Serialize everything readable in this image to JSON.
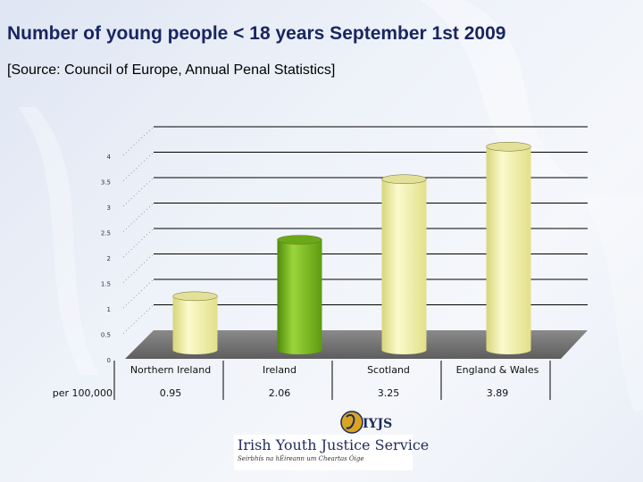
{
  "slide": {
    "title": "Number of young people < 18 years September 1st 2009",
    "subtitle": "[Source: Council of Europe, Annual Penal Statistics]"
  },
  "chart_data": {
    "type": "bar",
    "categories": [
      "Northern Ireland",
      "Ireland",
      "Scotland",
      "England & Wales"
    ],
    "values": [
      0.95,
      2.06,
      3.25,
      3.89
    ],
    "value_labels": [
      "0.95",
      "2.06",
      "3.25",
      "3.89"
    ],
    "table_row_label": "per 100,000",
    "ylim": [
      0,
      4
    ],
    "yticks": [
      "0",
      "0.5",
      "1",
      "1.5",
      "2",
      "2.5",
      "3",
      "3.5",
      "4"
    ],
    "grid": true,
    "bar_colors": [
      "#f4f2a0",
      "#7dbb1c",
      "#f4f2a0",
      "#f4f2a0"
    ]
  },
  "logo": {
    "emblem_text": "IYJS",
    "name": "Irish Youth Justice Service",
    "irish_name": "Seirbhís na hÉireann um Cheartas Óige"
  }
}
